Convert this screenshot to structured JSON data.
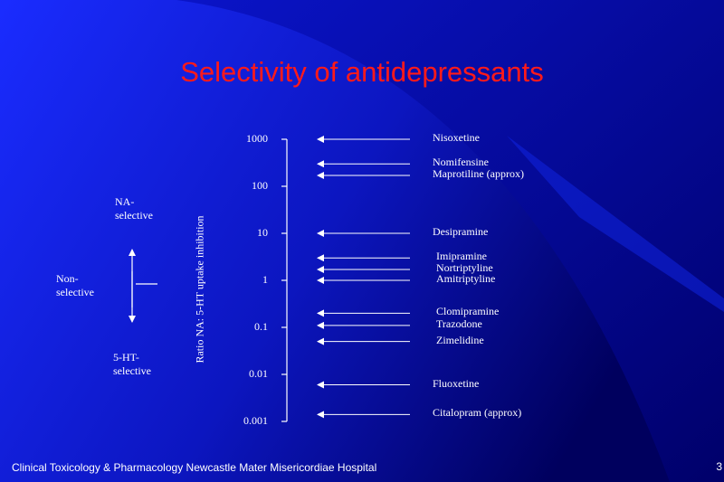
{
  "slide": {
    "title": "Selectivity of antidepressants",
    "footer": "Clinical Toxicology & Pharmacology Newcastle Mater Misericordiae Hospital",
    "page_number": "3"
  },
  "colors": {
    "background_light": "#1a2cff",
    "background_dark": "#00005e",
    "title": "#ff1a1a",
    "text": "#ffffff"
  },
  "legend": {
    "na_selective": [
      "NA-",
      "selective"
    ],
    "non_selective": [
      "Non-",
      "selective"
    ],
    "ht_selective": [
      "5-HT-",
      "selective"
    ]
  },
  "axis": {
    "label": "Ratio NA:  5-HT uptake inhibition",
    "ticks": [
      "1000",
      "100",
      "10",
      "1",
      "0.1",
      "0.01",
      "0.001"
    ]
  },
  "drugs": [
    {
      "name": "Nisoxetine",
      "ratio": 1000
    },
    {
      "name": "Nomifensine",
      "ratio": 300
    },
    {
      "name": "Maprotiline (approx)",
      "ratio": 170
    },
    {
      "name": "Desipramine",
      "ratio": 10
    },
    {
      "name": "Imipramine",
      "ratio": 3
    },
    {
      "name": "Nortriptyline",
      "ratio": 1.7
    },
    {
      "name": "Amitriptyline",
      "ratio": 1
    },
    {
      "name": "Clomipramine",
      "ratio": 0.2
    },
    {
      "name": "Trazodone",
      "ratio": 0.11
    },
    {
      "name": "Zimelidine",
      "ratio": 0.05
    },
    {
      "name": "Fluoxetine",
      "ratio": 0.006
    },
    {
      "name": "Citalopram (approx)",
      "ratio": 0.0014
    }
  ]
}
